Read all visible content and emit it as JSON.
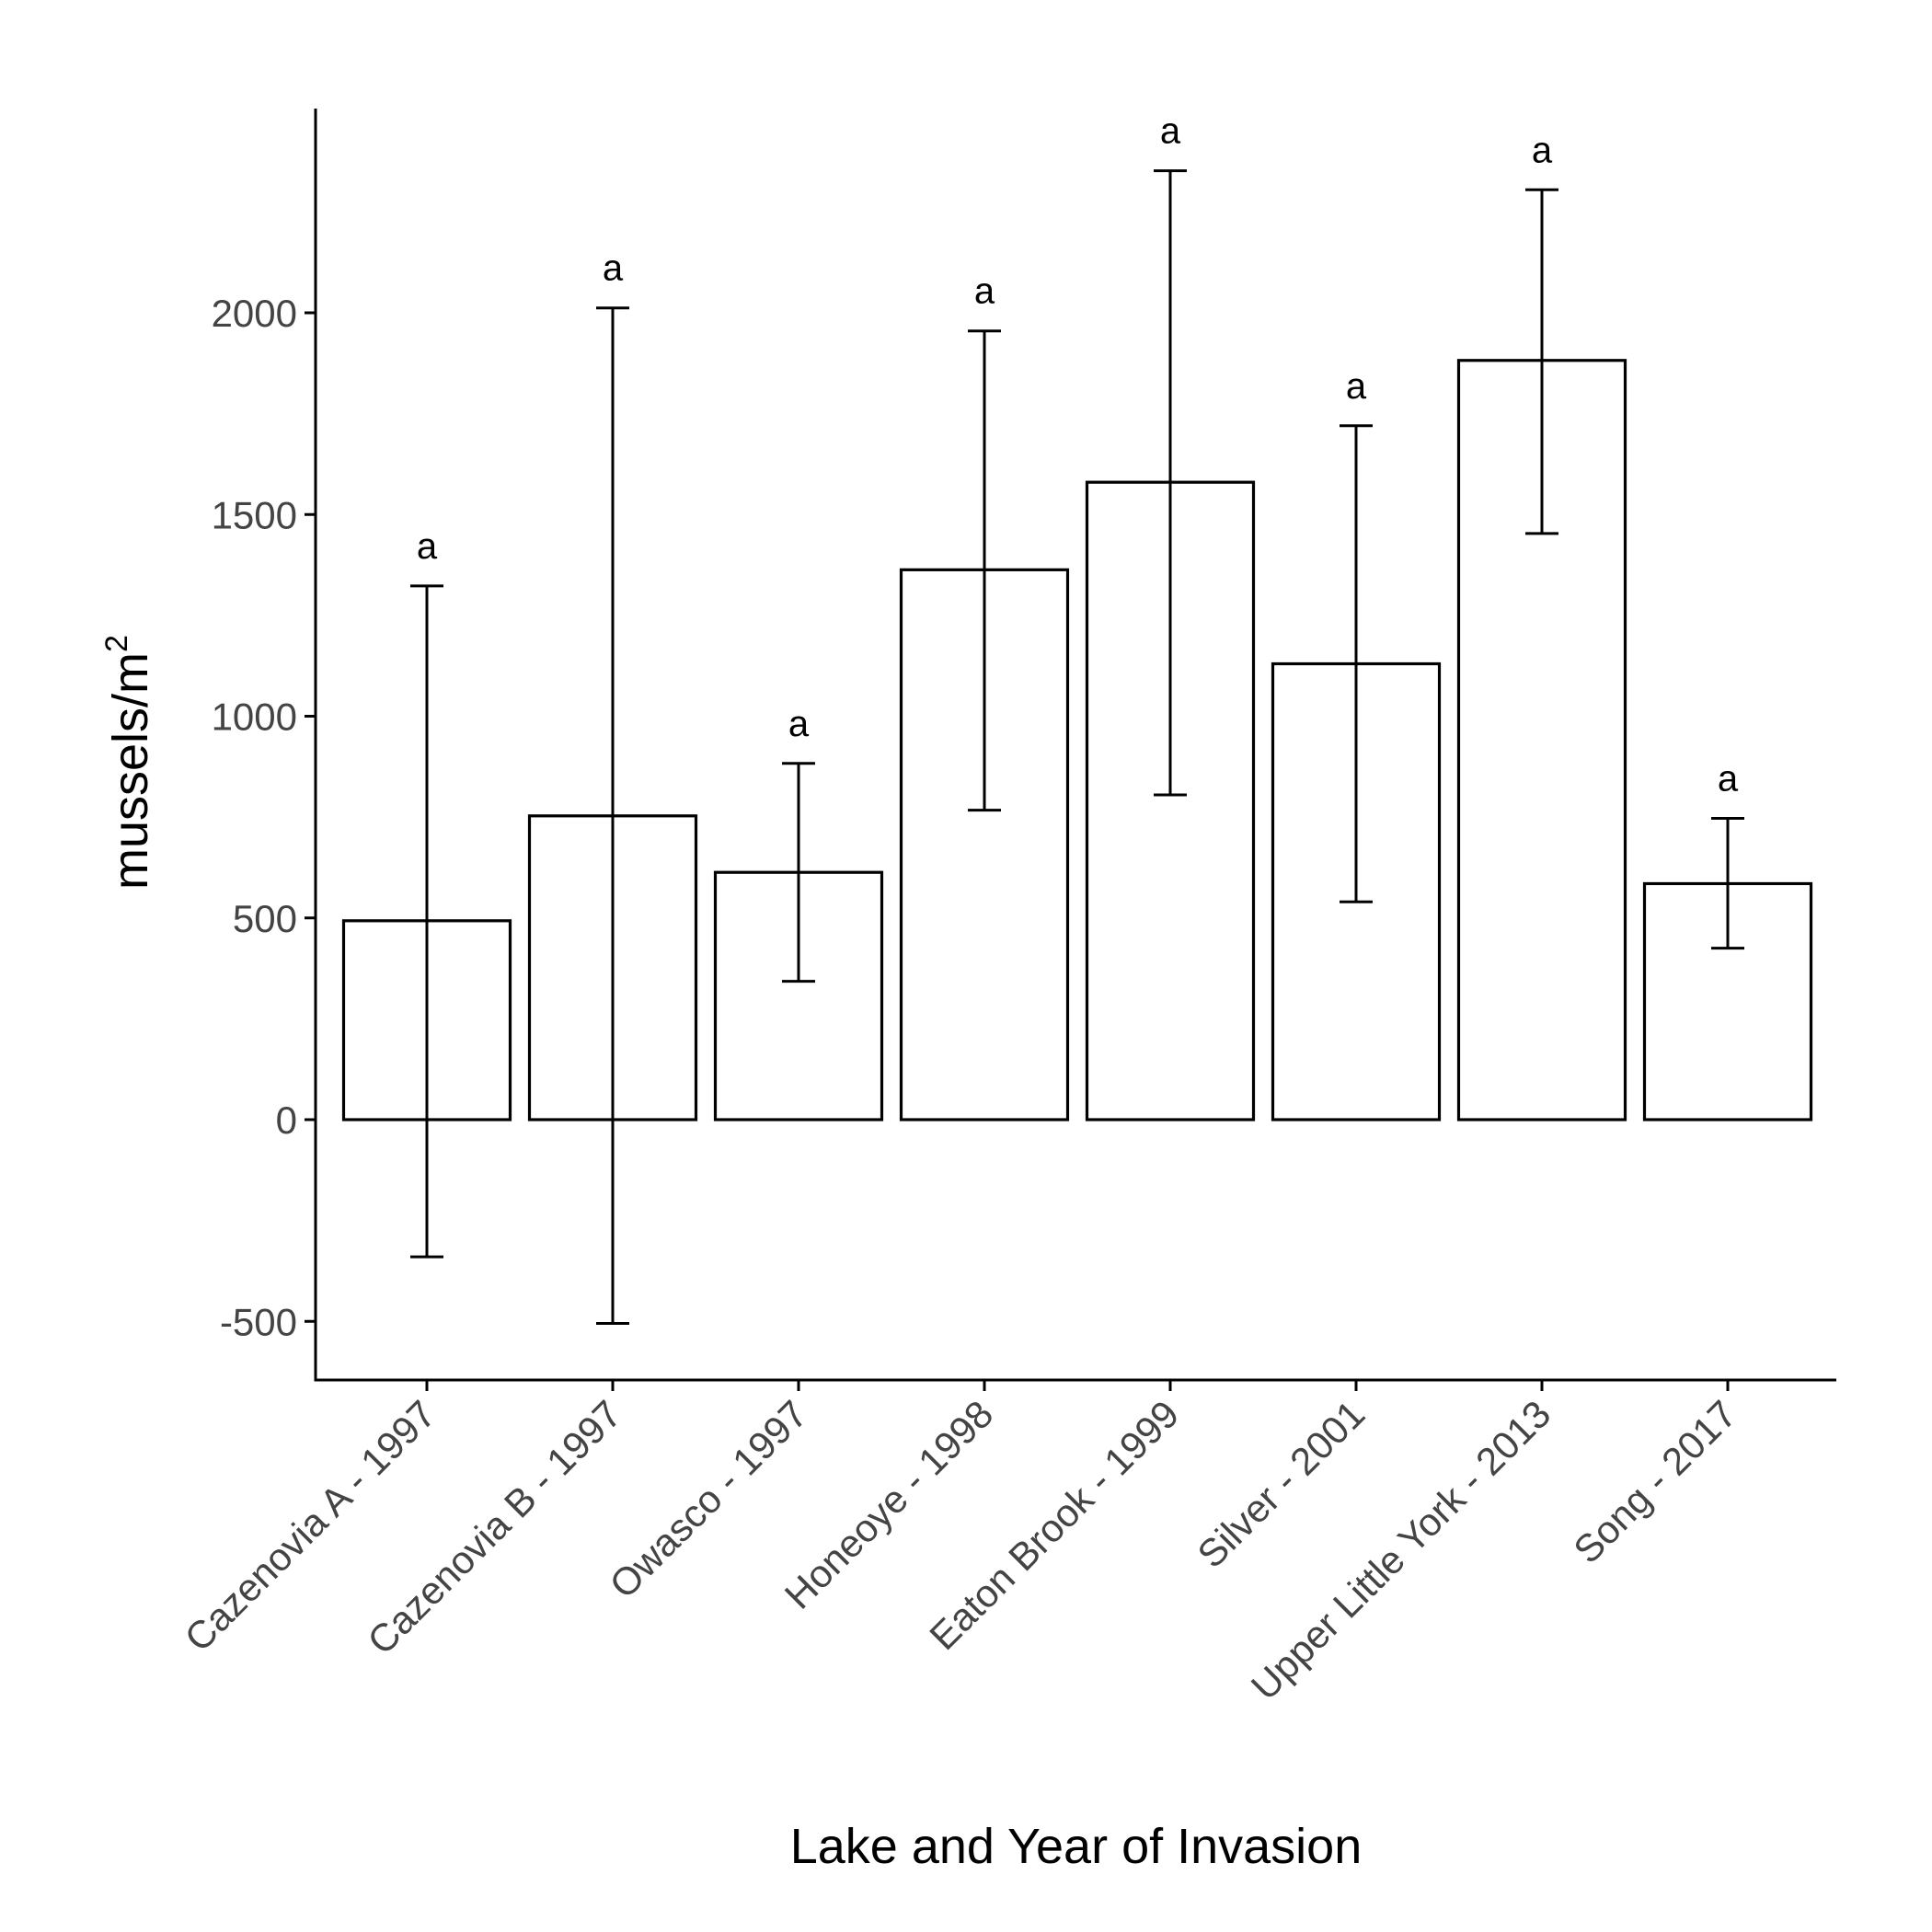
{
  "chart_data": {
    "type": "bar",
    "title": "",
    "xlabel": "Lake and Year of Invasion",
    "ylabel": "mussels/m",
    "ylabel_superscript": "2",
    "ylim": [
      -650,
      2500
    ],
    "yticks": [
      -500,
      0,
      500,
      1000,
      1500,
      2000
    ],
    "categories": [
      "Cazenovia A - 1997",
      "Cazenovia B - 1997",
      "Owasco - 1997",
      "Honeoye - 1998",
      "Eaton Brook - 1999",
      "Silver - 2001",
      "Upper Little York - 2013",
      "Song - 2017"
    ],
    "values": [
      493,
      753,
      613,
      1363,
      1580,
      1130,
      1882,
      585
    ],
    "error_low": [
      -340,
      -505,
      343,
      767,
      805,
      540,
      1453,
      425
    ],
    "error_high": [
      1323,
      2012,
      883,
      1955,
      2352,
      1720,
      2305,
      747
    ],
    "significance_labels": [
      "a",
      "a",
      "a",
      "a",
      "a",
      "a",
      "a",
      "a"
    ],
    "grid": false,
    "legend": "none"
  }
}
